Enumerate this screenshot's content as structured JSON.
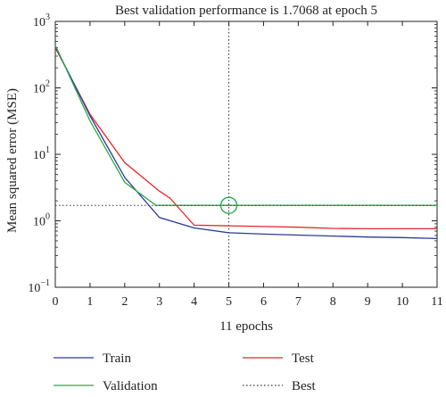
{
  "chart_data": {
    "type": "line",
    "title": "Best validation performance is 1.7068 at epoch 5",
    "xlabel": "11 epochs",
    "ylabel": "Mean squared error (MSE)",
    "xlim": [
      0,
      11
    ],
    "ylim": [
      0.1,
      1000
    ],
    "y_scale": "log",
    "x_ticks": [
      "0",
      "1",
      "2",
      "3",
      "4",
      "5",
      "6",
      "7",
      "8",
      "9",
      "10",
      "11"
    ],
    "y_ticks": [
      {
        "value": 1000,
        "base": "10",
        "exp": "3"
      },
      {
        "value": 100,
        "base": "10",
        "exp": "2"
      },
      {
        "value": 10,
        "base": "10",
        "exp": "1"
      },
      {
        "value": 1,
        "base": "10",
        "exp": "0"
      },
      {
        "value": 0.1,
        "base": "10",
        "exp": "−1"
      }
    ],
    "series": [
      {
        "name": "Train",
        "color": "#2b3a9a",
        "x": [
          0,
          1,
          2,
          3,
          4,
          5,
          6,
          7,
          8,
          9,
          10,
          11
        ],
        "y": [
          420,
          38,
          4.5,
          1.12,
          0.78,
          0.66,
          0.63,
          0.61,
          0.59,
          0.57,
          0.56,
          0.54
        ]
      },
      {
        "name": "Test",
        "color": "#e8262b",
        "x": [
          0,
          1,
          2,
          3,
          3.3,
          4,
          5,
          6,
          7,
          8,
          9,
          10,
          11
        ],
        "y": [
          400,
          40,
          7.5,
          2.8,
          2.2,
          0.86,
          0.84,
          0.82,
          0.8,
          0.77,
          0.76,
          0.76,
          0.76
        ]
      },
      {
        "name": "Validation",
        "color": "#2ea84a",
        "x": [
          0,
          1,
          2,
          2.9,
          5,
          11
        ],
        "y": [
          440,
          32,
          3.8,
          1.7068,
          1.7068,
          1.7068
        ]
      },
      {
        "name": "Best",
        "color": "#333333",
        "style": "dotted",
        "best_epoch": 5,
        "best_value": 1.7068
      }
    ],
    "best_marker": {
      "x": 5,
      "y": 1.7068,
      "color": "#2ea84a"
    },
    "legend": {
      "placement": "bottom",
      "entries": [
        {
          "name": "Train",
          "color": "#2b3a9a",
          "style": "solid"
        },
        {
          "name": "Test",
          "color": "#e8262b",
          "style": "solid"
        },
        {
          "name": "Validation",
          "color": "#2ea84a",
          "style": "solid"
        },
        {
          "name": "Best",
          "color": "#333333",
          "style": "dotted"
        }
      ]
    },
    "grid": false
  }
}
